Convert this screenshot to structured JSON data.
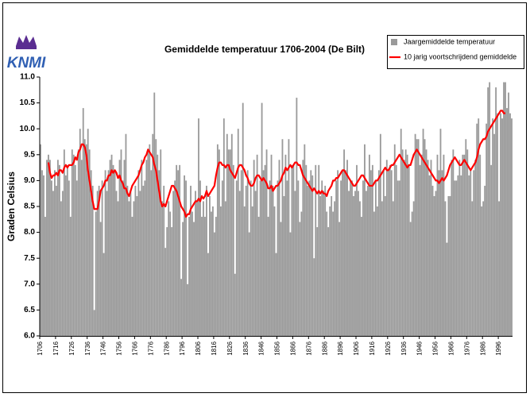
{
  "chart_data": {
    "type": "bar",
    "title": "Gemiddelde temperatuur 1706-2004 (De Bilt)",
    "y_label": "Graden Celsius",
    "logo": "KNMI",
    "legend": "top-right",
    "grid": false,
    "ylim": [
      6,
      11
    ],
    "yticks": [
      {
        "value": 6,
        "label": "6.0"
      },
      6.5,
      {
        "value": 7,
        "label": "7.0"
      },
      7.5,
      {
        "value": 8,
        "label": "8.0"
      },
      8.5,
      {
        "value": 9,
        "label": "9.0"
      },
      9.5,
      {
        "value": 10,
        "label": "10.0"
      },
      10.5,
      {
        "value": 11,
        "label": "11.0"
      }
    ],
    "categories": [
      "1706",
      null,
      null,
      null,
      null,
      null,
      null,
      null,
      null,
      null,
      "1716",
      null,
      null,
      null,
      null,
      null,
      null,
      null,
      null,
      null,
      "1726",
      null,
      null,
      null,
      null,
      null,
      null,
      null,
      null,
      null,
      "1736",
      null,
      null,
      null,
      null,
      null,
      null,
      null,
      null,
      null,
      "1746",
      null,
      null,
      null,
      null,
      null,
      null,
      null,
      null,
      null,
      "1756",
      null,
      null,
      null,
      null,
      null,
      null,
      null,
      null,
      null,
      "1766",
      null,
      null,
      null,
      null,
      null,
      null,
      null,
      null,
      null,
      "1776",
      null,
      null,
      null,
      null,
      null,
      null,
      null,
      null,
      null,
      "1786",
      null,
      null,
      null,
      null,
      null,
      null,
      null,
      null,
      null,
      "1796",
      null,
      null,
      null,
      null,
      null,
      null,
      null,
      null,
      null,
      "1806",
      null,
      null,
      null,
      null,
      null,
      null,
      null,
      null,
      null,
      "1816",
      null,
      null,
      null,
      null,
      null,
      null,
      null,
      null,
      null,
      "1826",
      null,
      null,
      null,
      null,
      null,
      null,
      null,
      null,
      null,
      "1836",
      null,
      null,
      null,
      null,
      null,
      null,
      null,
      null,
      null,
      "1846",
      null,
      null,
      null,
      null,
      null,
      null,
      null,
      null,
      null,
      "1856",
      null,
      null,
      null,
      null,
      null,
      null,
      null,
      null,
      null,
      "1866",
      null,
      null,
      null,
      null,
      null,
      null,
      null,
      null,
      null,
      "1876",
      null,
      null,
      null,
      null,
      null,
      null,
      null,
      null,
      null,
      "1886",
      null,
      null,
      null,
      null,
      null,
      null,
      null,
      null,
      null,
      "1896",
      null,
      null,
      null,
      null,
      null,
      null,
      null,
      null,
      null,
      "1906",
      null,
      null,
      null,
      null,
      null,
      null,
      null,
      null,
      null,
      "1916",
      null,
      null,
      null,
      null,
      null,
      null,
      null,
      null,
      null,
      "1926",
      null,
      null,
      null,
      null,
      null,
      null,
      null,
      null,
      null,
      "1936",
      null,
      null,
      null,
      null,
      null,
      null,
      null,
      null,
      null,
      "1946",
      null,
      null,
      null,
      null,
      null,
      null,
      null,
      null,
      null,
      "1956",
      null,
      null,
      null,
      null,
      null,
      null,
      null,
      null,
      null,
      "1966",
      null,
      null,
      null,
      null,
      null,
      null,
      null,
      null,
      null,
      "1976",
      null,
      null,
      null,
      null,
      null,
      null,
      null,
      null,
      null,
      "1986",
      null,
      null,
      null,
      null,
      null,
      null,
      null,
      null,
      null,
      "1996",
      null,
      null,
      null,
      null,
      null,
      null,
      null,
      null
    ],
    "series": [
      {
        "name": "Jaargemiddelde temperatuur",
        "type": "bar",
        "color": "#9a9a9a",
        "values": [
          9.7,
          9.2,
          9.1,
          8.3,
          9.4,
          9.5,
          9.4,
          9.0,
          8.8,
          9.2,
          8.9,
          9.4,
          9.3,
          8.6,
          8.8,
          9.6,
          9.1,
          9.3,
          9.0,
          8.3,
          9.6,
          9.5,
          9.3,
          9.0,
          9.6,
          10.0,
          9.4,
          10.4,
          9.8,
          9.7,
          10.0,
          9.6,
          9.2,
          8.9,
          6.5,
          8.4,
          8.8,
          8.9,
          8.2,
          9.0,
          7.6,
          9.2,
          8.8,
          9.2,
          9.4,
          9.5,
          9.3,
          9.2,
          8.8,
          8.6,
          9.4,
          9.6,
          9.0,
          9.4,
          9.9,
          8.9,
          8.6,
          8.8,
          8.3,
          8.6,
          8.9,
          8.7,
          9.2,
          8.8,
          9.4,
          8.9,
          9.0,
          9.4,
          9.6,
          9.7,
          9.2,
          9.9,
          10.7,
          9.8,
          9.5,
          9.2,
          9.6,
          8.6,
          8.9,
          7.7,
          8.1,
          8.6,
          8.4,
          8.1,
          8.8,
          9.0,
          9.3,
          9.2,
          9.3,
          7.1,
          8.2,
          9.1,
          9.0,
          7.0,
          8.3,
          8.9,
          8.4,
          8.2,
          8.8,
          8.6,
          10.2,
          9.0,
          8.3,
          8.6,
          8.3,
          8.9,
          7.6,
          8.7,
          8.4,
          8.5,
          8.0,
          8.3,
          9.7,
          9.6,
          8.5,
          9.0,
          10.2,
          8.6,
          9.9,
          9.6,
          9.6,
          9.9,
          9.3,
          7.2,
          9.0,
          10.0,
          8.8,
          9.2,
          10.5,
          8.5,
          8.9,
          9.2,
          8.0,
          9.0,
          8.5,
          9.4,
          8.8,
          9.5,
          8.3,
          9.0,
          10.5,
          9.2,
          9.3,
          9.6,
          8.3,
          9.0,
          9.5,
          8.9,
          8.5,
          7.6,
          9.0,
          9.4,
          8.2,
          9.8,
          8.7,
          9.5,
          9.0,
          9.8,
          8.0,
          9.3,
          9.3,
          8.8,
          10.6,
          9.0,
          8.2,
          8.4,
          9.4,
          9.7,
          9.3,
          8.9,
          9.0,
          9.2,
          9.1,
          7.5,
          9.3,
          8.1,
          9.3,
          8.7,
          9.0,
          8.8,
          8.9,
          8.4,
          8.1,
          8.5,
          8.7,
          8.4,
          8.6,
          9.0,
          9.2,
          8.2,
          9.0,
          9.2,
          9.6,
          9.2,
          9.4,
          8.8,
          9.0,
          9.0,
          8.7,
          8.8,
          9.3,
          8.8,
          8.6,
          8.3,
          9.0,
          9.7,
          8.8,
          8.9,
          9.5,
          9.2,
          9.3,
          8.4,
          9.0,
          8.5,
          9.2,
          9.9,
          8.6,
          9.2,
          8.7,
          9.4,
          9.2,
          9.3,
          9.2,
          8.6,
          9.7,
          9.3,
          9.0,
          9.0,
          10.0,
          9.6,
          9.4,
          9.6,
          9.5,
          9.3,
          8.2,
          8.4,
          8.6,
          9.9,
          9.8,
          9.8,
          9.3,
          9.5,
          10.0,
          9.8,
          9.6,
          9.4,
          9.1,
          9.4,
          8.9,
          8.7,
          8.8,
          9.5,
          9.2,
          10.0,
          9.2,
          9.5,
          8.6,
          7.8,
          8.7,
          8.7,
          9.4,
          9.6,
          9.0,
          9.0,
          9.1,
          9.4,
          9.1,
          9.5,
          9.5,
          9.8,
          9.6,
          9.1,
          9.2,
          8.6,
          9.2,
          9.4,
          10.1,
          10.2,
          9.5,
          8.5,
          8.6,
          8.9,
          10.1,
          10.8,
          10.9,
          9.3,
          10.2,
          9.9,
          10.8,
          10.3,
          8.6,
          10.3,
          10.2,
          10.9,
          10.9,
          10.4,
          10.7,
          10.3,
          10.2
        ]
      },
      {
        "name": "10 jarig voortschrijdend gemiddelde",
        "type": "line",
        "color": "#ff0000",
        "values": [
          null,
          null,
          null,
          null,
          null,
          9.35,
          9.15,
          9.05,
          9.1,
          9.1,
          9.15,
          9.1,
          9.2,
          9.2,
          9.15,
          9.25,
          9.3,
          9.25,
          9.3,
          9.3,
          9.3,
          9.35,
          9.45,
          9.4,
          9.55,
          9.6,
          9.7,
          9.7,
          9.65,
          9.5,
          9.2,
          9.0,
          8.8,
          8.6,
          8.45,
          8.45,
          8.45,
          8.6,
          8.8,
          8.85,
          8.9,
          9.0,
          9.0,
          9.1,
          9.1,
          9.2,
          9.15,
          9.2,
          9.15,
          9.05,
          9.1,
          9.0,
          8.95,
          8.85,
          8.85,
          8.75,
          8.7,
          8.8,
          8.9,
          8.95,
          9.0,
          9.05,
          9.1,
          9.2,
          9.3,
          9.35,
          9.45,
          9.5,
          9.6,
          9.55,
          9.5,
          9.45,
          9.3,
          9.2,
          9.0,
          8.8,
          8.6,
          8.5,
          8.55,
          8.5,
          8.6,
          8.7,
          8.8,
          8.9,
          8.9,
          8.85,
          8.8,
          8.7,
          8.6,
          8.5,
          8.45,
          8.4,
          8.3,
          8.35,
          8.35,
          8.45,
          8.5,
          8.55,
          8.6,
          8.6,
          8.65,
          8.6,
          8.7,
          8.65,
          8.7,
          8.8,
          8.7,
          8.75,
          8.8,
          8.85,
          8.9,
          9.1,
          9.25,
          9.35,
          9.35,
          9.3,
          9.3,
          9.25,
          9.3,
          9.3,
          9.2,
          9.15,
          9.1,
          9.05,
          9.15,
          9.25,
          9.3,
          9.3,
          9.25,
          9.2,
          9.1,
          9.05,
          8.95,
          8.9,
          8.9,
          8.95,
          9.05,
          9.1,
          9.1,
          9.05,
          9.0,
          9.05,
          9.0,
          8.95,
          8.85,
          8.85,
          8.9,
          8.8,
          8.85,
          8.9,
          8.9,
          8.95,
          9.0,
          9.1,
          9.15,
          9.25,
          9.2,
          9.25,
          9.3,
          9.25,
          9.3,
          9.35,
          9.35,
          9.3,
          9.3,
          9.2,
          9.1,
          9.05,
          9.0,
          8.95,
          8.9,
          8.85,
          8.8,
          8.85,
          8.8,
          8.75,
          8.8,
          8.75,
          8.8,
          8.75,
          8.75,
          8.7,
          8.8,
          8.85,
          8.9,
          9.0,
          9.0,
          9.05,
          9.05,
          9.1,
          9.15,
          9.2,
          9.2,
          9.15,
          9.1,
          9.05,
          9.0,
          8.95,
          8.9,
          8.9,
          8.95,
          9.0,
          9.05,
          9.1,
          9.1,
          9.05,
          9.0,
          8.95,
          8.9,
          8.9,
          8.9,
          8.95,
          9.0,
          9.0,
          9.05,
          9.1,
          9.15,
          9.2,
          9.25,
          9.2,
          9.2,
          9.25,
          9.3,
          9.3,
          9.35,
          9.4,
          9.45,
          9.5,
          9.45,
          9.4,
          9.35,
          9.3,
          9.25,
          9.3,
          9.3,
          9.4,
          9.5,
          9.55,
          9.6,
          9.55,
          9.5,
          9.45,
          9.4,
          9.35,
          9.3,
          9.25,
          9.2,
          9.15,
          9.1,
          9.05,
          9.0,
          9.0,
          8.95,
          9.0,
          9.05,
          9.0,
          9.05,
          9.1,
          9.2,
          9.3,
          9.35,
          9.4,
          9.45,
          9.4,
          9.35,
          9.3,
          9.3,
          9.35,
          9.4,
          9.35,
          9.3,
          9.25,
          9.2,
          9.25,
          9.3,
          9.35,
          9.45,
          9.6,
          9.7,
          9.75,
          9.8,
          9.8,
          9.85,
          9.95,
          10.0,
          10.05,
          10.1,
          10.15,
          10.2,
          10.25,
          10.3,
          10.35,
          10.35,
          10.3,
          10.3,
          null,
          null,
          null,
          null
        ]
      }
    ]
  }
}
